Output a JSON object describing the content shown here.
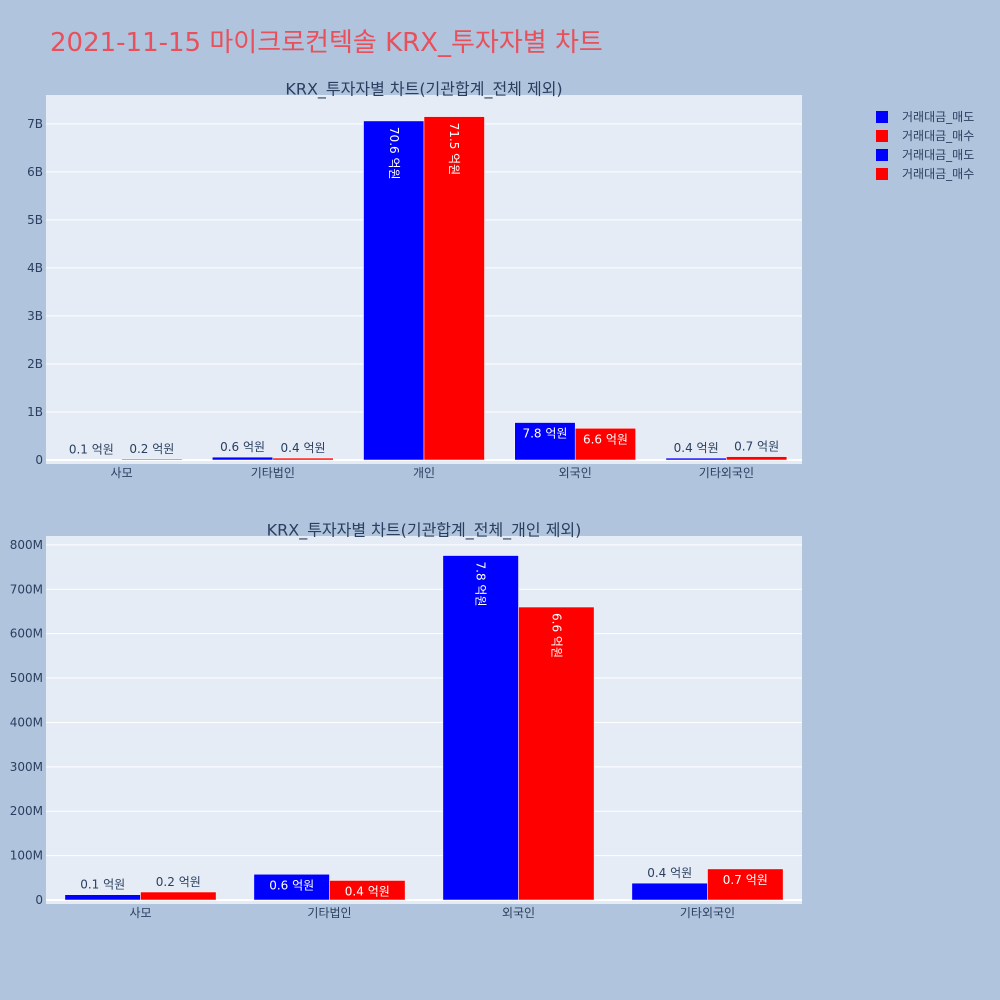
{
  "page": {
    "title": "2021-11-15 마이크로컨텍솔 KRX_투자자별 차트"
  },
  "legend": [
    {
      "label": "거래대금_매도",
      "color": "#0000ff"
    },
    {
      "label": "거래대금_매수",
      "color": "#ff0000"
    },
    {
      "label": "거래대금_매도",
      "color": "#0000ff"
    },
    {
      "label": "거래대금_매수",
      "color": "#ff0000"
    }
  ],
  "chart_data": [
    {
      "type": "bar",
      "title": "KRX_투자자별 차트(기관합계_전체 제외)",
      "categories": [
        "사모",
        "기타법인",
        "개인",
        "외국인",
        "기타외국인"
      ],
      "series": [
        {
          "name": "거래대금_매도",
          "color": "#0000ff",
          "values": [
            10000000,
            60000000,
            7060000000,
            780000000,
            40000000
          ],
          "labels": [
            "0.1 억원",
            "0.6 억원",
            "70.6 억원",
            "7.8 억원",
            "0.4 억원"
          ]
        },
        {
          "name": "거래대금_매수",
          "color": "#ff0000",
          "values": [
            20000000,
            40000000,
            7150000000,
            660000000,
            70000000
          ],
          "labels": [
            "0.2 억원",
            "0.4 억원",
            "71.5 억원",
            "6.6 억원",
            "0.7 억원"
          ]
        }
      ],
      "ylim": [
        0,
        7600000000
      ],
      "yticks": [
        0,
        1000000000,
        2000000000,
        3000000000,
        4000000000,
        5000000000,
        6000000000,
        7000000000
      ],
      "ytick_labels": [
        "0",
        "1B",
        "2B",
        "3B",
        "4B",
        "5B",
        "6B",
        "7B"
      ],
      "grid": true
    },
    {
      "type": "bar",
      "title": "KRX_투자자별 차트(기관합계_전체_개인 제외)",
      "categories": [
        "사모",
        "기타법인",
        "외국인",
        "기타외국인"
      ],
      "series": [
        {
          "name": "거래대금_매도",
          "color": "#0000ff",
          "values": [
            12000000,
            58000000,
            776000000,
            38000000
          ],
          "labels": [
            "0.1 억원",
            "0.6 억원",
            "7.8 억원",
            "0.4 억원"
          ]
        },
        {
          "name": "거래대금_매수",
          "color": "#ff0000",
          "values": [
            18000000,
            44000000,
            660000000,
            70000000
          ],
          "labels": [
            "0.2 억원",
            "0.4 억원",
            "6.6 억원",
            "0.7 억원"
          ]
        }
      ],
      "ylim": [
        0,
        820000000
      ],
      "yticks": [
        0,
        100000000,
        200000000,
        300000000,
        400000000,
        500000000,
        600000000,
        700000000,
        800000000
      ],
      "ytick_labels": [
        "0",
        "100M",
        "200M",
        "300M",
        "400M",
        "500M",
        "600M",
        "700M",
        "800M"
      ],
      "grid": true
    }
  ]
}
